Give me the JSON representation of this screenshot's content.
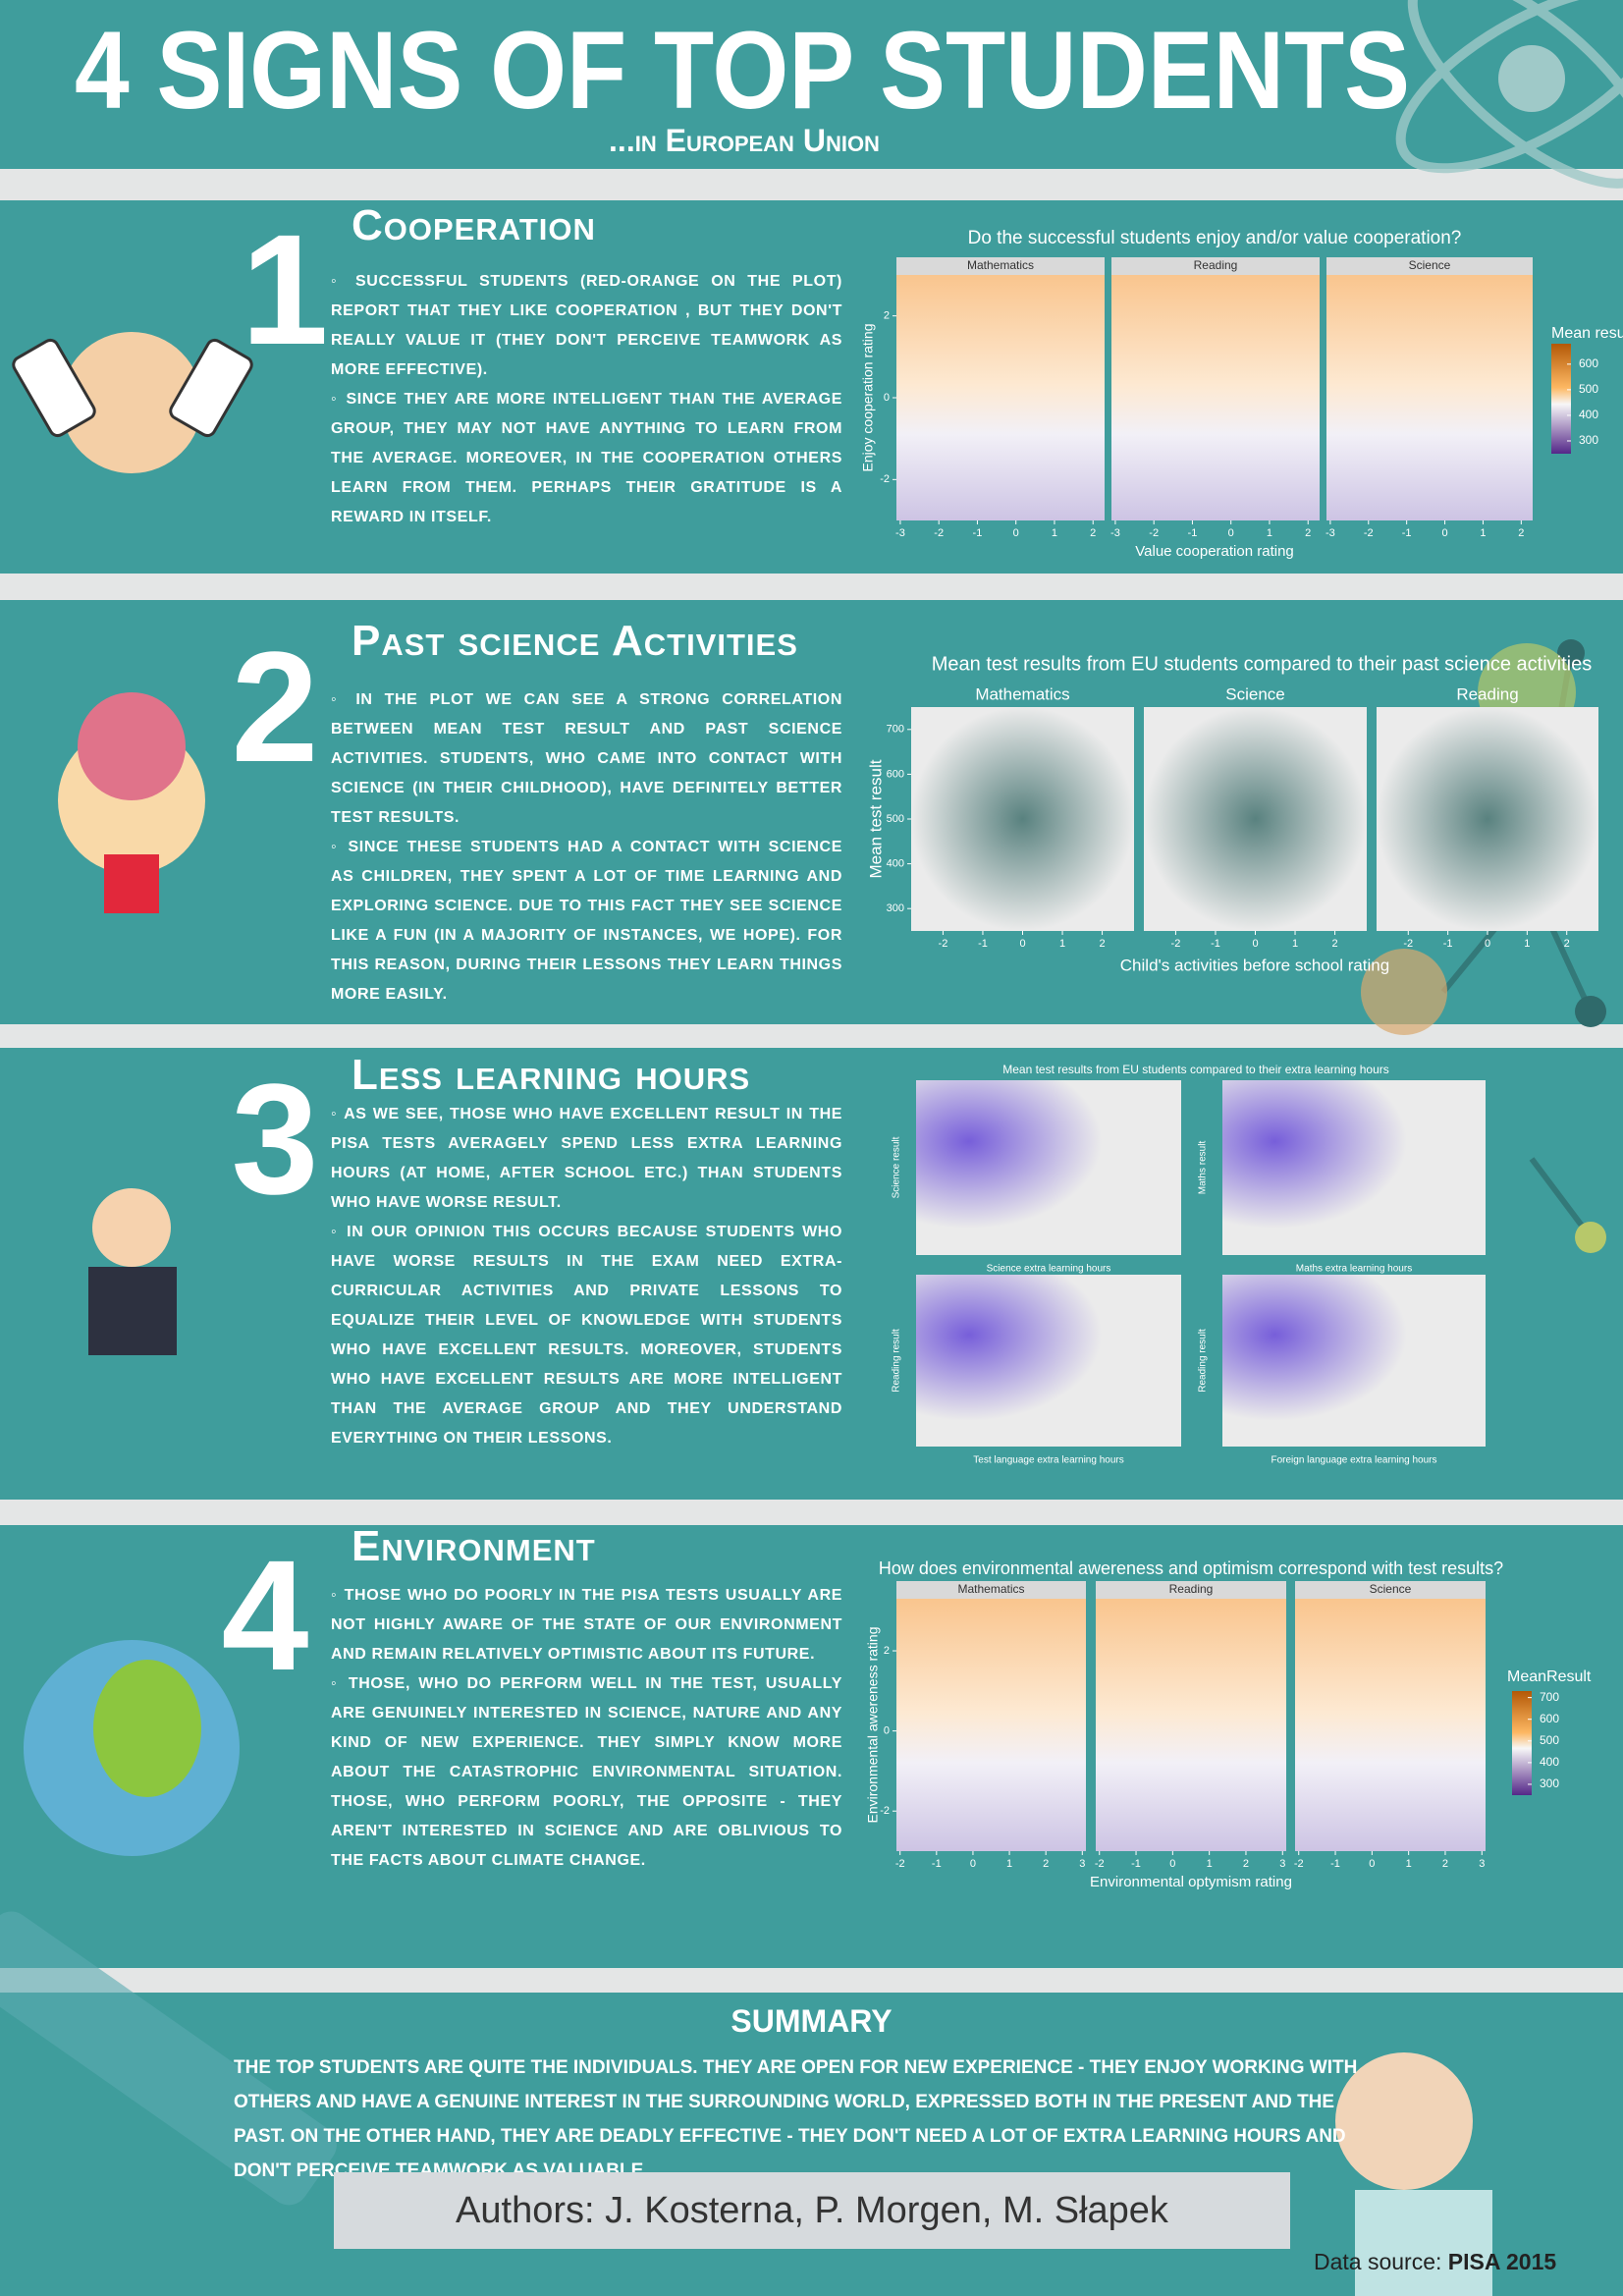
{
  "header": {
    "title": "4 SIGNS OF TOP STUDENTS",
    "subtitle": "...in European Union"
  },
  "sections": [
    {
      "number": "1",
      "heading": "Cooperation",
      "paragraphs": [
        "◦ Successful students (Red-orange on the plot) report that they like cooperation , but they don't really value it (they don't perceive teamwork as more effective).",
        "◦ Since they are more intelligent than the average group, they may not have anything to learn from the average. Moreover, in the cooperation others learn from them. Perhaps their gratitude is a reward in itself."
      ],
      "plot": {
        "title": "Do the successful students enjoy and/or value cooperation?",
        "facets": [
          "Mathematics",
          "Reading",
          "Science"
        ],
        "x_label": "Value cooperation rating",
        "y_label": "Enjoy cooperation rating",
        "xlim": [
          -3.1,
          2.3
        ],
        "xticks": [
          -3,
          -2,
          -1,
          0,
          1,
          2
        ],
        "ylim": [
          -3,
          3
        ],
        "yticks": [
          -2,
          0,
          2
        ],
        "legend_title": "Mean result",
        "legend_lim": [
          250,
          680
        ],
        "legend_ticks": [
          300,
          400,
          500,
          600
        ]
      }
    },
    {
      "number": "2",
      "heading": "Past science Activities",
      "paragraphs": [
        "◦ In the plot we can see a strong correlation between mean test result and past science activities. Students, who came into contact with science (in their childhood), have definitely better test results.",
        "◦ Since these students had a contact with science as children, they spent a lot of time learning and exploring science. Due to this fact they see science like a fun (in a majority of instances, we hope). For this reason, during their lessons they learn things more easily."
      ],
      "plot": {
        "title": "Mean test results from EU students compared to their past science activities",
        "facets": [
          "Mathematics",
          "Science",
          "Reading"
        ],
        "x_label": "Child's activities before school rating",
        "y_label": "Mean test result",
        "xlim": [
          -2.8,
          2.8
        ],
        "xticks": [
          -2,
          -1,
          0,
          1,
          2
        ],
        "ylim": [
          250,
          750
        ],
        "yticks": [
          300,
          400,
          500,
          600,
          700
        ]
      }
    },
    {
      "number": "3",
      "heading": "Less learning hours",
      "paragraphs": [
        "◦ As we see, those who have excellent result in the PISA tests averagely spend less extra learning hours (at home, after school etc.) than students who have worse result.",
        "◦ In our opinion this occurs because students who have worse results in the exam need extra-curricular activities and private lessons to equalize their level of knowledge with students who have excellent results. Moreover, students who have excellent results are more intelligent than the average group and they understand everything on their lessons."
      ],
      "plot": {
        "title": "Mean test results from EU students compared to their extra learning hours",
        "panels": [
          {
            "x_label": "Science extra learning hours",
            "y_label": "Science result"
          },
          {
            "x_label": "Maths extra learning hours",
            "y_label": "Maths result"
          },
          {
            "x_label": "Test language extra learning hours",
            "y_label": "Reading result"
          },
          {
            "x_label": "Foreign language extra learning hours",
            "y_label": "Reading result"
          }
        ]
      }
    },
    {
      "number": "4",
      "heading": "Environment",
      "paragraphs": [
        "◦ Those who do poorly in the PISA tests usually are not highly aware of the state of our environment and remain relatively optimistic about its future.",
        "◦ Those, who do perform well in the test, usually are genuinely interested in science, nature and any kind of new experience. They simply know more about the catastrophic environmental situation. Those, who perform poorly, the opposite - they aren't interested in science and are oblivious to the facts about climate change."
      ],
      "plot": {
        "title": "How does environmental awereness and optimism correspond with test results?",
        "facets": [
          "Mathematics",
          "Reading",
          "Science"
        ],
        "x_label": "Environmental optymism rating",
        "y_label": "Environmental awereness rating",
        "xlim": [
          -2.1,
          3.1
        ],
        "xticks": [
          -2,
          -1,
          0,
          1,
          2,
          3
        ],
        "ylim": [
          -3,
          3.3
        ],
        "yticks": [
          -2,
          0,
          2
        ],
        "legend_title": "MeanResult",
        "legend_lim": [
          250,
          730
        ],
        "legend_ticks": [
          300,
          400,
          500,
          600,
          700
        ]
      }
    }
  ],
  "summary": {
    "heading": "SUMMARY",
    "text": "The top students are quite the individuals. They are open for new experience - they enjoy working with others and have a genuine interest in the surrounding world, expressed both in the present and the past. On the other hand, they are deadly effective - they don't need a lot of extra learning hours and don't perceive teamwork as valuable."
  },
  "authors": "Authors: J. Kosterna, P. Morgen, M. Słapek",
  "source": {
    "label": "Data source:",
    "name": "PISA 2015"
  }
}
